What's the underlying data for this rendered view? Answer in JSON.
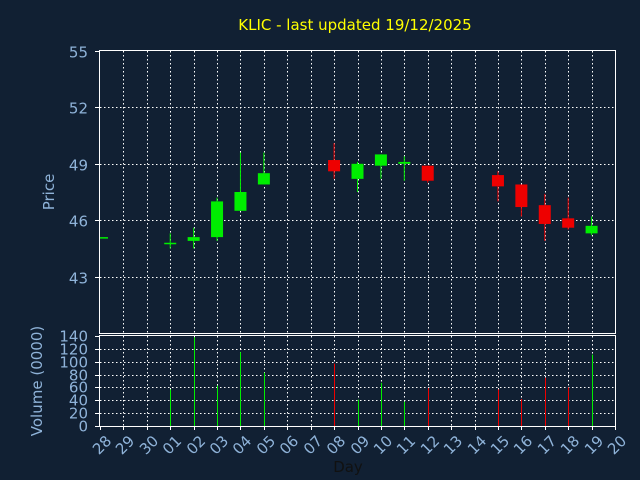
{
  "colors": {
    "background": "#112033",
    "title": "#ffff00",
    "axis_text": "#8fb3d9",
    "grid": "#ffffff",
    "up": "#00ee00",
    "down": "#ee0000"
  },
  "chart_data": {
    "type": "candlestick",
    "title": "KLIC - last updated 19/12/2025",
    "xlabel": "Day",
    "price_panel": {
      "ylabel": "Price",
      "ylim": [
        40,
        55
      ],
      "yticks": [
        "43",
        "46",
        "49",
        "52",
        "55"
      ],
      "grid": true
    },
    "volume_panel": {
      "ylabel": "Volume (0000)",
      "ylim": [
        0,
        140
      ],
      "yticks": [
        "0",
        "20",
        "40",
        "60",
        "80",
        "100",
        "120",
        "140"
      ],
      "grid": true
    },
    "days": [
      "28",
      "29",
      "30",
      "01",
      "02",
      "03",
      "04",
      "05",
      "06",
      "07",
      "08",
      "09",
      "10",
      "11",
      "12",
      "13",
      "14",
      "15",
      "16",
      "17",
      "18",
      "19",
      "20"
    ],
    "candles": [
      {
        "day": "28",
        "open": 45.1,
        "close": 45.1,
        "high": 45.1,
        "low": 45.1,
        "volume": 0
      },
      {
        "day": "01",
        "open": 44.8,
        "close": 44.8,
        "high": 45.3,
        "low": 44.5,
        "volume": 57
      },
      {
        "day": "02",
        "open": 44.9,
        "close": 45.1,
        "high": 45.6,
        "low": 44.5,
        "volume": 138
      },
      {
        "day": "03",
        "open": 45.1,
        "close": 47.0,
        "high": 47.2,
        "low": 44.9,
        "volume": 63
      },
      {
        "day": "04",
        "open": 46.5,
        "close": 47.5,
        "high": 49.6,
        "low": 46.5,
        "volume": 115
      },
      {
        "day": "05",
        "open": 47.9,
        "close": 48.5,
        "high": 49.6,
        "low": 47.9,
        "volume": 83
      },
      {
        "day": "08",
        "open": 49.2,
        "close": 48.6,
        "high": 50.1,
        "low": 48.2,
        "volume": 97
      },
      {
        "day": "09",
        "open": 48.2,
        "close": 49.0,
        "high": 49.1,
        "low": 47.5,
        "volume": 41
      },
      {
        "day": "10",
        "open": 48.9,
        "close": 49.5,
        "high": 49.5,
        "low": 48.2,
        "volume": 67
      },
      {
        "day": "11",
        "open": 49.0,
        "close": 49.1,
        "high": 49.4,
        "low": 48.1,
        "volume": 38
      },
      {
        "day": "12",
        "open": 48.9,
        "close": 48.1,
        "high": 48.9,
        "low": 48.0,
        "volume": 59
      },
      {
        "day": "15",
        "open": 48.4,
        "close": 47.8,
        "high": 48.6,
        "low": 47.0,
        "volume": 57
      },
      {
        "day": "16",
        "open": 47.9,
        "close": 46.7,
        "high": 47.9,
        "low": 46.2,
        "volume": 42
      },
      {
        "day": "17",
        "open": 46.8,
        "close": 45.8,
        "high": 47.4,
        "low": 44.9,
        "volume": 75
      },
      {
        "day": "18",
        "open": 46.1,
        "close": 45.6,
        "high": 47.2,
        "low": 45.5,
        "volume": 60
      },
      {
        "day": "19",
        "open": 45.3,
        "close": 45.7,
        "high": 46.2,
        "low": 45.2,
        "volume": 111
      }
    ]
  }
}
